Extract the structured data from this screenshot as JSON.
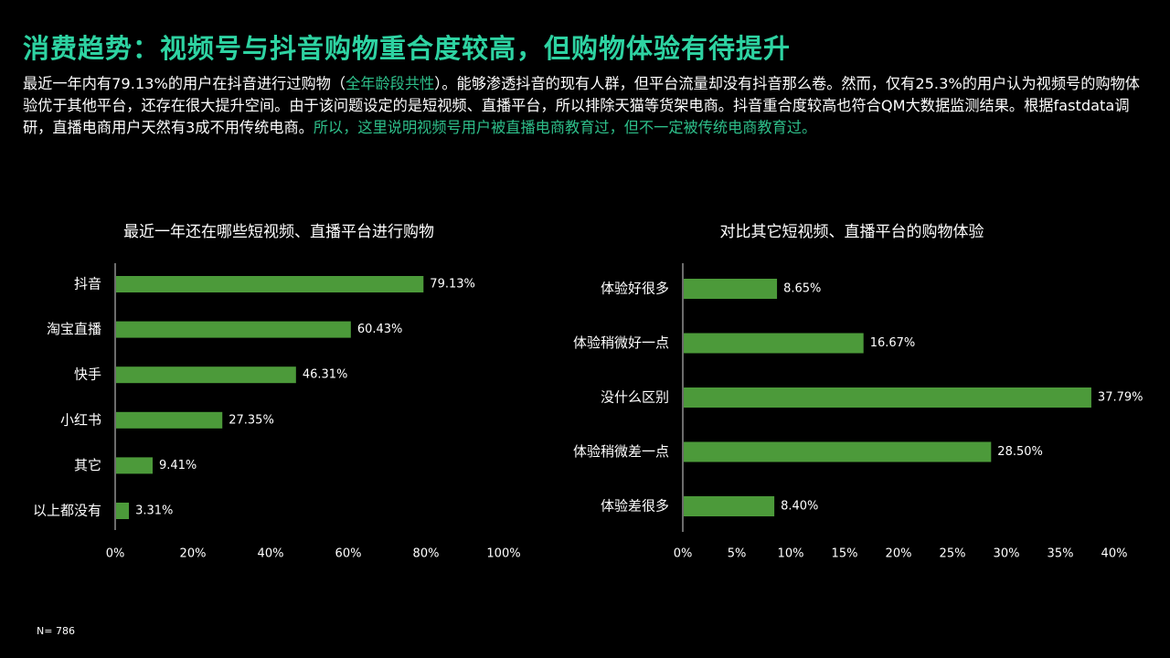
{
  "page": {
    "title": "消费趋势：视频号与抖音购物重合度较高，但购物体验有待提升",
    "intro": {
      "part1": "最近一年内有79.13%的用户在抖音进行过购物（",
      "highlight1": "全年龄段共性",
      "part2": "）。能够渗透抖音的现有人群，但平台流量却没有抖音那么卷。然而，仅有25.3%的用户认为视频号的购物体验优于其他平台，还存在很大提升空间。由于该问题设定的是短视频、直播平台，所以排除天猫等货架电商。抖音重合度较高也符合QM大数据监测结果。根据fastdata调研，直播电商用户天然有3成不用传统电商。",
      "highlight2": "所以，这里说明视频号用户被直播电商教育过，但不一定被传统电商教育过。"
    },
    "footnote": "N= 786"
  },
  "colors": {
    "bar": "#4c9a3a",
    "title": "#2ed3a2",
    "highlight": "#2ebf8a",
    "text": "#ffffff"
  },
  "chart_data": [
    {
      "type": "bar",
      "orientation": "horizontal",
      "title": "最近一年还在哪些短视频、直播平台进行购物",
      "categories": [
        "抖音",
        "淘宝直播",
        "快手",
        "小红书",
        "其它",
        "以上都没有"
      ],
      "values": [
        79.13,
        60.43,
        46.31,
        27.35,
        9.41,
        3.31
      ],
      "value_labels": [
        "79.13%",
        "60.43%",
        "46.31%",
        "27.35%",
        "9.41%",
        "3.31%"
      ],
      "xlim": [
        0,
        100
      ],
      "ticks": [
        0,
        20,
        40,
        60,
        80,
        100
      ],
      "tick_labels": [
        "0%",
        "20%",
        "40%",
        "60%",
        "80%",
        "100%"
      ],
      "grid": false,
      "legend": "none"
    },
    {
      "type": "bar",
      "orientation": "horizontal",
      "title": "对比其它短视频、直播平台的购物体验",
      "categories": [
        "体验好很多",
        "体验稍微好一点",
        "没什么区别",
        "体验稍微差一点",
        "体验差很多"
      ],
      "values": [
        8.65,
        16.67,
        37.79,
        28.5,
        8.4
      ],
      "value_labels": [
        "8.65%",
        "16.67%",
        "37.79%",
        "28.50%",
        "8.40%"
      ],
      "xlim": [
        0,
        40
      ],
      "ticks": [
        0,
        5,
        10,
        15,
        20,
        25,
        30,
        35,
        40
      ],
      "tick_labels": [
        "0%",
        "5%",
        "10%",
        "15%",
        "20%",
        "25%",
        "30%",
        "35%",
        "40%"
      ],
      "grid": false,
      "legend": "none"
    }
  ]
}
